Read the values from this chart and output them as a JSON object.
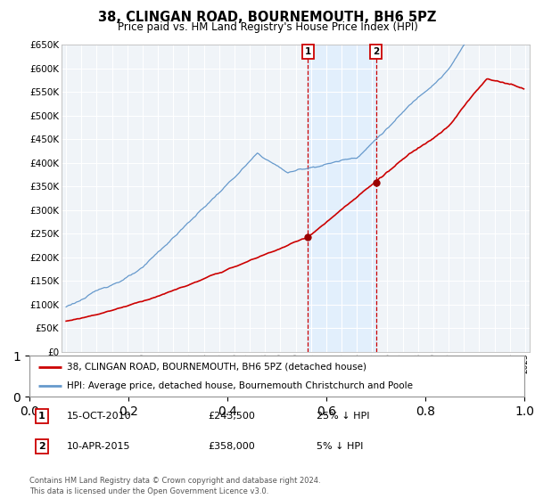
{
  "title": "38, CLINGAN ROAD, BOURNEMOUTH, BH6 5PZ",
  "subtitle": "Price paid vs. HM Land Registry's House Price Index (HPI)",
  "ylim": [
    0,
    650000
  ],
  "yticks": [
    0,
    50000,
    100000,
    150000,
    200000,
    250000,
    300000,
    350000,
    400000,
    450000,
    500000,
    550000,
    600000,
    650000
  ],
  "sale1_date": 2010.79,
  "sale1_price": 243500,
  "sale2_date": 2015.27,
  "sale2_price": 358000,
  "legend_entry1": "38, CLINGAN ROAD, BOURNEMOUTH, BH6 5PZ (detached house)",
  "legend_entry2": "HPI: Average price, detached house, Bournemouth Christchurch and Poole",
  "table_row1": [
    "1",
    "15-OCT-2010",
    "£243,500",
    "25% ↓ HPI"
  ],
  "table_row2": [
    "2",
    "10-APR-2015",
    "£358,000",
    "5% ↓ HPI"
  ],
  "footer": "Contains HM Land Registry data © Crown copyright and database right 2024.\nThis data is licensed under the Open Government Licence v3.0.",
  "line_color_red": "#cc0000",
  "line_color_blue": "#6699cc",
  "shade_color": "#ddeeff",
  "background_plot": "#f0f4f8",
  "grid_color": "#ffffff"
}
